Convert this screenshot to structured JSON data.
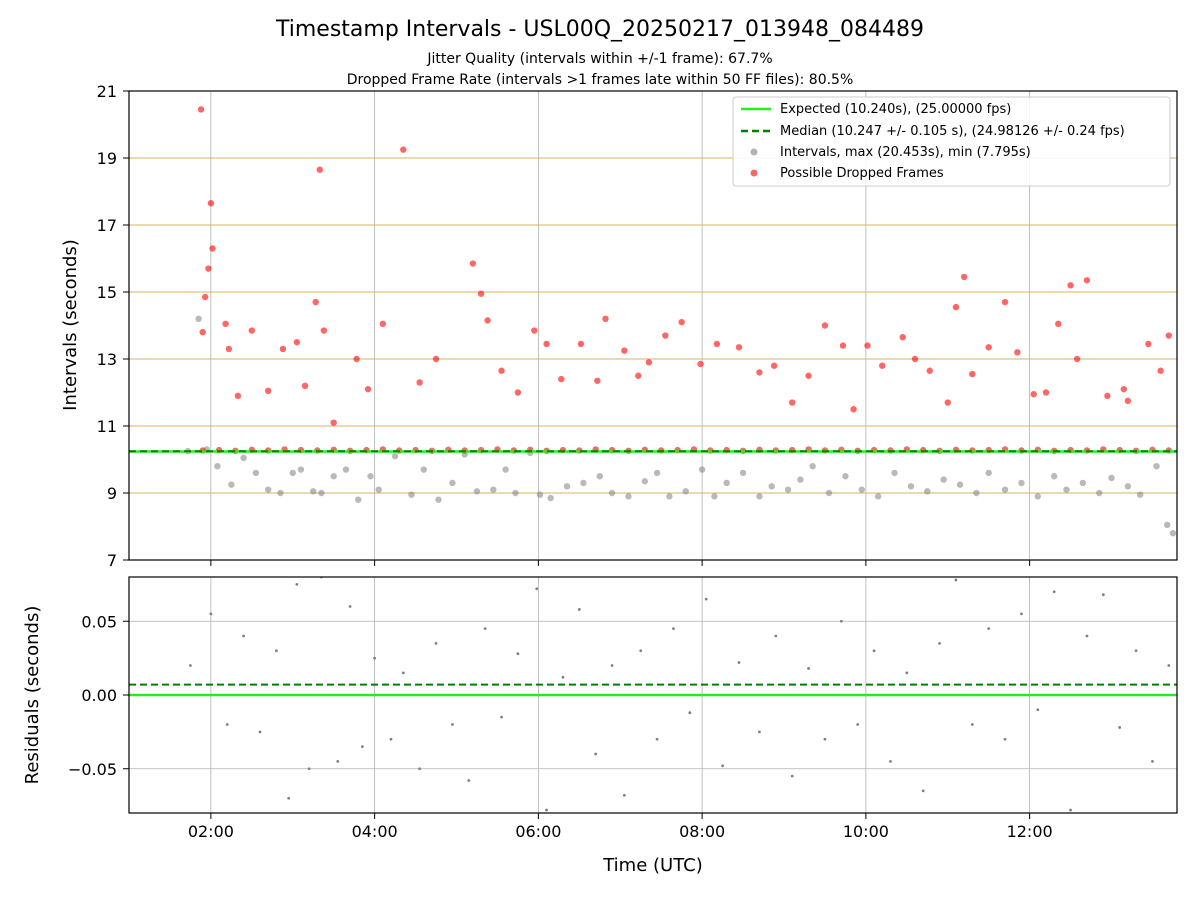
{
  "chart_data": [
    {
      "type": "scatter",
      "panel": "intervals",
      "title": "Timestamp Intervals - USL00Q_20250217_013948_084489",
      "subtitle_lines": [
        "Jitter Quality (intervals within +/-1 frame): 67.7%",
        "Dropped Frame Rate (intervals >1 frames late within 50 FF files): 80.5%"
      ],
      "ylabel": "Intervals (seconds)",
      "ylim": [
        7,
        21
      ],
      "yticks": [
        7,
        9,
        11,
        13,
        15,
        17,
        19,
        21
      ],
      "ytick_labels": [
        "7",
        "9",
        "11",
        "13",
        "15",
        "17",
        "19",
        "21"
      ],
      "horizontal_gridlines": [
        9,
        11,
        13,
        15,
        17,
        19,
        21
      ],
      "grid": true,
      "legend_position": "upper right",
      "expected_interval": 10.24,
      "median_interval": 10.247,
      "legend": [
        {
          "label": "Expected (10.240s), (25.00000 fps)",
          "style": "solid-line",
          "color": "#22ee22"
        },
        {
          "label": "Median (10.247 +/- 0.105 s), (24.98126 +/- 0.24 fps)",
          "style": "dashed-line",
          "color": "#008000"
        },
        {
          "label": "Intervals, max (20.453s), min (7.795s)",
          "style": "marker",
          "color": "#808080"
        },
        {
          "label": "Possible Dropped Frames",
          "style": "marker",
          "color": "#ff0000"
        }
      ],
      "series": [
        {
          "name": "Intervals, max (20.453s), min (7.795s)",
          "color": "#808080",
          "x_hours": [
            1.72,
            1.85,
            1.95,
            2.08,
            2.25,
            2.4,
            2.55,
            2.7,
            2.85,
            3.0,
            3.1,
            3.25,
            3.35,
            3.5,
            3.65,
            3.8,
            3.95,
            4.05,
            4.25,
            4.45,
            4.6,
            4.78,
            4.95,
            5.1,
            5.25,
            5.45,
            5.6,
            5.72,
            5.9,
            6.02,
            6.15,
            6.35,
            6.55,
            6.75,
            6.9,
            7.1,
            7.3,
            7.45,
            7.6,
            7.8,
            8.0,
            8.15,
            8.3,
            8.5,
            8.7,
            8.85,
            9.05,
            9.2,
            9.35,
            9.55,
            9.75,
            9.95,
            10.15,
            10.35,
            10.55,
            10.75,
            10.95,
            11.15,
            11.35,
            11.5,
            11.7,
            11.9,
            12.1,
            12.3,
            12.45,
            12.65,
            12.85,
            13.0,
            13.2,
            13.35,
            13.55,
            13.68,
            13.75
          ],
          "y": [
            10.25,
            14.2,
            10.3,
            9.8,
            9.25,
            10.05,
            9.6,
            9.1,
            9.0,
            9.6,
            9.7,
            9.05,
            9.0,
            9.5,
            9.7,
            8.8,
            9.5,
            9.1,
            10.1,
            8.95,
            9.7,
            8.8,
            9.3,
            10.15,
            9.05,
            9.1,
            9.7,
            9.0,
            10.2,
            8.95,
            8.85,
            9.2,
            9.3,
            9.5,
            9.0,
            8.9,
            9.35,
            9.6,
            8.9,
            9.05,
            9.7,
            8.9,
            9.3,
            9.6,
            8.9,
            9.2,
            9.1,
            9.4,
            9.8,
            9.0,
            9.5,
            9.1,
            8.9,
            9.6,
            9.2,
            9.05,
            9.4,
            9.25,
            9.0,
            9.6,
            9.1,
            9.3,
            8.9,
            9.5,
            9.1,
            9.3,
            9.0,
            9.45,
            9.2,
            8.95,
            9.8,
            8.05,
            7.8
          ]
        },
        {
          "name": "Possible Dropped Frames",
          "color": "#ff0000",
          "x_hours": [
            1.88,
            1.9,
            1.93,
            1.97,
            2.0,
            2.02,
            2.18,
            2.22,
            2.33,
            2.5,
            2.7,
            2.88,
            3.05,
            3.15,
            3.28,
            3.33,
            3.38,
            3.5,
            3.78,
            3.92,
            4.1,
            4.35,
            4.55,
            4.75,
            5.2,
            5.3,
            5.38,
            5.55,
            5.75,
            5.95,
            6.1,
            6.28,
            6.52,
            6.72,
            6.82,
            7.05,
            7.22,
            7.35,
            7.55,
            7.75,
            7.98,
            8.18,
            8.45,
            8.7,
            8.88,
            9.1,
            9.3,
            9.5,
            9.72,
            9.85,
            10.02,
            10.2,
            10.45,
            10.6,
            10.78,
            11.0,
            11.1,
            11.2,
            11.3,
            11.5,
            11.7,
            11.85,
            12.05,
            12.2,
            12.35,
            12.5,
            12.58,
            12.7,
            12.95,
            13.15,
            13.2,
            13.45,
            13.6,
            13.7
          ],
          "y": [
            20.45,
            13.8,
            14.85,
            15.7,
            17.65,
            16.3,
            14.05,
            13.3,
            11.9,
            13.85,
            12.05,
            13.3,
            13.5,
            12.2,
            14.7,
            18.65,
            13.85,
            11.1,
            13.0,
            12.1,
            14.05,
            19.25,
            12.3,
            13.0,
            15.85,
            14.95,
            14.15,
            12.65,
            12.0,
            13.85,
            13.45,
            12.4,
            13.45,
            12.35,
            14.2,
            13.25,
            12.5,
            12.9,
            13.7,
            14.1,
            12.85,
            13.45,
            13.35,
            12.6,
            12.8,
            11.7,
            12.5,
            14.0,
            13.4,
            11.5,
            13.4,
            12.8,
            13.65,
            13.0,
            12.65,
            11.7,
            14.55,
            15.45,
            12.55,
            13.35,
            14.7,
            13.2,
            11.95,
            12.0,
            14.05,
            15.2,
            13.0,
            15.35,
            11.9,
            12.1,
            11.75,
            13.45,
            12.65,
            13.7
          ]
        },
        {
          "name": "Possible Dropped Frames (cluster near expected)",
          "color": "#ff0000",
          "x_hours": [
            1.9,
            2.1,
            2.3,
            2.5,
            2.7,
            2.9,
            3.1,
            3.3,
            3.5,
            3.7,
            3.9,
            4.1,
            4.3,
            4.5,
            4.7,
            4.9,
            5.1,
            5.3,
            5.5,
            5.7,
            5.9,
            6.1,
            6.3,
            6.5,
            6.7,
            6.9,
            7.1,
            7.3,
            7.5,
            7.7,
            7.9,
            8.1,
            8.3,
            8.5,
            8.7,
            8.9,
            9.1,
            9.3,
            9.5,
            9.7,
            9.9,
            10.1,
            10.3,
            10.5,
            10.7,
            10.9,
            11.1,
            11.3,
            11.5,
            11.7,
            11.9,
            12.1,
            12.3,
            12.5,
            12.7,
            12.9,
            13.1,
            13.3,
            13.5,
            13.7
          ],
          "y": [
            10.27,
            10.28,
            10.26,
            10.29,
            10.27,
            10.3,
            10.28,
            10.27,
            10.29,
            10.26,
            10.28,
            10.3,
            10.27,
            10.28,
            10.26,
            10.29,
            10.27,
            10.28,
            10.3,
            10.27,
            10.29,
            10.26,
            10.28,
            10.27,
            10.3,
            10.28,
            10.26,
            10.29,
            10.27,
            10.28,
            10.3,
            10.27,
            10.28,
            10.26,
            10.29,
            10.27,
            10.28,
            10.3,
            10.27,
            10.29,
            10.26,
            10.28,
            10.27,
            10.3,
            10.28,
            10.26,
            10.29,
            10.27,
            10.28,
            10.3,
            10.27,
            10.29,
            10.26,
            10.28,
            10.27,
            10.3,
            10.28,
            10.26,
            10.29,
            10.27
          ]
        }
      ]
    },
    {
      "type": "scatter",
      "panel": "residuals",
      "xlabel": "Time (UTC)",
      "ylabel": "Residuals (seconds)",
      "xlim_hours": [
        1.0,
        13.8
      ],
      "xticks_hours": [
        2,
        4,
        6,
        8,
        10,
        12
      ],
      "xtick_labels": [
        "02:00",
        "04:00",
        "06:00",
        "08:00",
        "10:00",
        "12:00"
      ],
      "ylim": [
        -0.08,
        0.08
      ],
      "yticks": [
        -0.05,
        0.0,
        0.05
      ],
      "ytick_labels": [
        "−0.05",
        "0.00",
        "0.05"
      ],
      "grid": true,
      "expected_residual": 0.0,
      "median_residual": 0.007,
      "series": [
        {
          "name": "Residuals",
          "color": "#808080",
          "x_hours": [
            1.75,
            2.0,
            2.2,
            2.4,
            2.6,
            2.8,
            2.95,
            3.05,
            3.2,
            3.35,
            3.55,
            3.7,
            3.85,
            4.0,
            4.2,
            4.35,
            4.55,
            4.75,
            4.95,
            5.15,
            5.35,
            5.55,
            5.75,
            5.98,
            6.1,
            6.3,
            6.5,
            6.7,
            6.9,
            7.05,
            7.25,
            7.45,
            7.65,
            7.85,
            8.05,
            8.25,
            8.45,
            8.7,
            8.9,
            9.1,
            9.3,
            9.5,
            9.7,
            9.9,
            10.1,
            10.3,
            10.5,
            10.7,
            10.9,
            11.1,
            11.3,
            11.5,
            11.7,
            11.9,
            12.1,
            12.3,
            12.5,
            12.7,
            12.9,
            13.1,
            13.3,
            13.5,
            13.7
          ],
          "y": [
            0.02,
            0.055,
            -0.02,
            0.04,
            -0.025,
            0.03,
            -0.07,
            0.075,
            -0.05,
            0.08,
            -0.045,
            0.06,
            -0.035,
            0.025,
            -0.03,
            0.015,
            -0.05,
            0.035,
            -0.02,
            -0.058,
            0.045,
            -0.015,
            0.028,
            0.072,
            -0.078,
            0.012,
            0.058,
            -0.04,
            0.02,
            -0.068,
            0.03,
            -0.03,
            0.045,
            -0.012,
            0.065,
            -0.048,
            0.022,
            -0.025,
            0.04,
            -0.055,
            0.018,
            -0.03,
            0.05,
            -0.02,
            0.03,
            -0.045,
            0.015,
            -0.065,
            0.035,
            0.078,
            -0.02,
            0.045,
            -0.03,
            0.055,
            -0.01,
            0.07,
            -0.078,
            0.04,
            0.068,
            -0.022,
            0.03,
            -0.045,
            0.02
          ]
        }
      ]
    }
  ]
}
